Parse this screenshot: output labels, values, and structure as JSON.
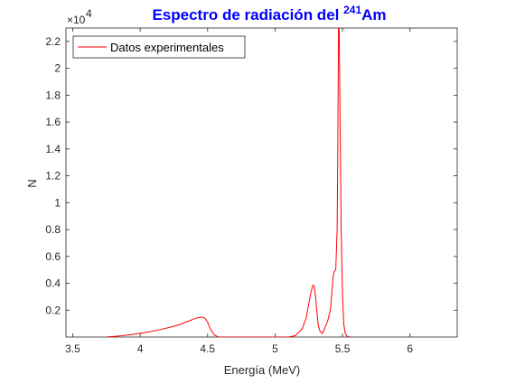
{
  "chart_data": {
    "type": "line",
    "title_main": "Espectro de radiación del ",
    "title_sup": "241",
    "title_tail": "Am",
    "title_color": "#0000ff",
    "xlabel": "Energía (MeV)",
    "ylabel": "N",
    "y_exponent_base": "×10",
    "y_exponent_power": "4",
    "xlim": [
      3.45,
      6.35
    ],
    "ylim": [
      0,
      23000
    ],
    "x_ticks": [
      3.5,
      4,
      4.5,
      5,
      5.5,
      6
    ],
    "x_tick_labels": [
      "3.5",
      "4",
      "4.5",
      "5",
      "5.5",
      "6"
    ],
    "y_ticks": [
      2000,
      4000,
      6000,
      8000,
      10000,
      12000,
      14000,
      16000,
      18000,
      20000,
      22000
    ],
    "y_tick_labels": [
      "0.2",
      "0.4",
      "0.6",
      "0.8",
      "1",
      "1.2",
      "1.4",
      "1.6",
      "1.8",
      "2",
      "2.2"
    ],
    "grid": false,
    "legend_position": "top-left",
    "series": [
      {
        "name": "Datos experimentales",
        "color": "#ff0000",
        "x": [
          3.75,
          3.85,
          3.95,
          4.05,
          4.15,
          4.25,
          4.3,
          4.35,
          4.4,
          4.43,
          4.46,
          4.48,
          4.5,
          4.52,
          4.55,
          4.58,
          5.1,
          5.15,
          5.2,
          5.23,
          5.25,
          5.27,
          5.28,
          5.29,
          5.3,
          5.31,
          5.32,
          5.33,
          5.35,
          5.37,
          5.39,
          5.41,
          5.42,
          5.43,
          5.44,
          5.45,
          5.46,
          5.465,
          5.47,
          5.475,
          5.48,
          5.49,
          5.5,
          5.51,
          5.52,
          5.53,
          5.55
        ],
        "y": [
          0,
          80,
          200,
          350,
          550,
          800,
          950,
          1150,
          1350,
          1450,
          1480,
          1400,
          1100,
          600,
          150,
          0,
          0,
          100,
          600,
          1400,
          2500,
          3500,
          3850,
          3800,
          3000,
          1900,
          900,
          500,
          250,
          700,
          1200,
          2000,
          3200,
          4500,
          4900,
          5000,
          8000,
          14000,
          23000,
          23000,
          18000,
          8000,
          3000,
          900,
          300,
          80,
          0
        ]
      }
    ]
  }
}
